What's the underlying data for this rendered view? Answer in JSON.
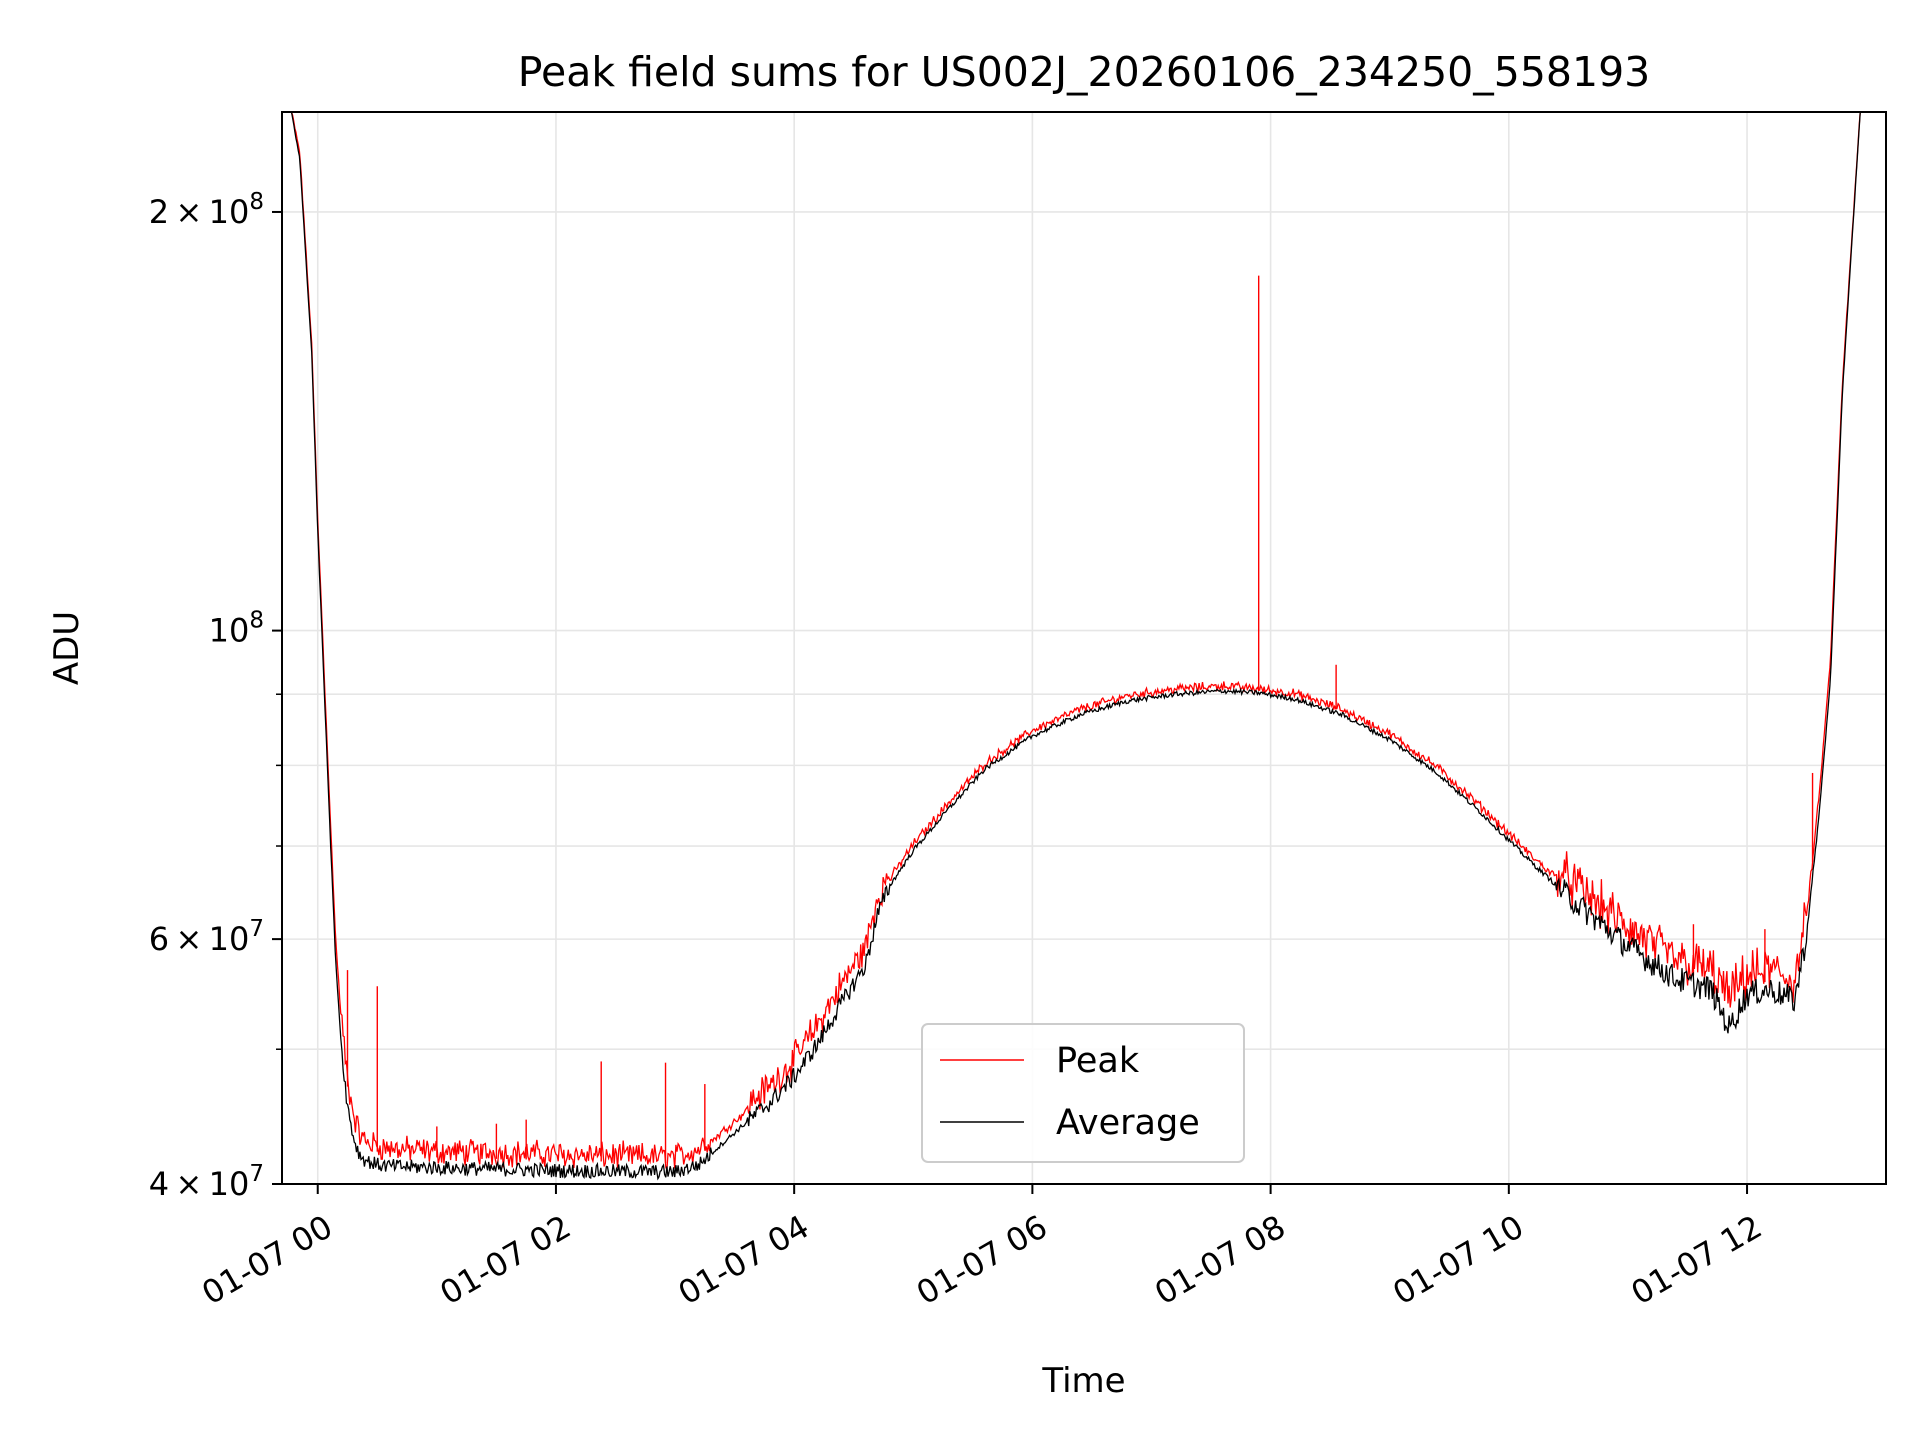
{
  "chart_data": {
    "type": "line",
    "title": "Peak field sums for US002J_20260106_234250_558193",
    "xlabel": "Time",
    "ylabel": "ADU",
    "y_scale": "log",
    "ylim": [
      40000000,
      236000000
    ],
    "xlim": [
      "01-06 23:42",
      "01-07 13:10"
    ],
    "grid": true,
    "legend_placement": "lower-center",
    "x_ticks": [
      "01-07 00",
      "01-07 02",
      "01-07 04",
      "01-07 06",
      "01-07 08",
      "01-07 10",
      "01-07 12"
    ],
    "x_tick_hours": [
      0,
      2,
      4,
      6,
      8,
      10,
      12
    ],
    "y_major_ticks": [
      {
        "value": 40000000,
        "mantissa": "4",
        "exponent": "7"
      },
      {
        "value": 60000000,
        "mantissa": "6",
        "exponent": "7"
      },
      {
        "value": 100000000,
        "mantissa": "",
        "exponent": "8"
      },
      {
        "value": 200000000,
        "mantissa": "2",
        "exponent": "8"
      }
    ],
    "y_minor_ticks": [
      50000000,
      70000000,
      80000000,
      90000000
    ],
    "series": [
      {
        "name": "Peak",
        "color": "#ff0000",
        "x_hours": [
          -0.22,
          -0.15,
          -0.05,
          0.0,
          0.05,
          0.1,
          0.15,
          0.2,
          0.25,
          0.3,
          0.35,
          0.4,
          0.5,
          0.6,
          0.8,
          1.0,
          1.2,
          1.5,
          1.8,
          2.0,
          2.2,
          2.5,
          2.8,
          3.0,
          3.2,
          3.4,
          3.6,
          3.8,
          4.0,
          4.2,
          4.4,
          4.6,
          4.7,
          4.8,
          5.0,
          5.3,
          5.6,
          6.0,
          6.4,
          6.8,
          7.2,
          7.6,
          7.9,
          8.2,
          8.6,
          9.0,
          9.4,
          9.8,
          10.2,
          10.6,
          11.0,
          11.4,
          11.7,
          11.85,
          12.0,
          12.2,
          12.4,
          12.45,
          12.5,
          12.6,
          12.7,
          12.8,
          12.95
        ],
        "y": [
          236000000,
          220000000,
          160000000,
          120000000,
          95000000,
          75000000,
          60000000,
          52000000,
          47000000,
          44500000,
          43000000,
          42500000,
          42200000,
          42000000,
          41900000,
          41800000,
          41750000,
          41700000,
          41650000,
          41600000,
          41550000,
          41500000,
          41450000,
          41400000,
          42000000,
          43500000,
          45000000,
          46500000,
          48500000,
          51500000,
          55000000,
          58500000,
          63500000,
          66000000,
          70000000,
          75000000,
          80000000,
          84500000,
          87500000,
          89500000,
          90500000,
          91000000,
          90500000,
          89800000,
          87500000,
          84000000,
          79500000,
          74000000,
          68500000,
          64000000,
          60000000,
          57000000,
          56000000,
          53500000,
          55500000,
          56000000,
          55000000,
          58000000,
          62000000,
          75000000,
          95000000,
          150000000,
          236000000
        ],
        "spikes": [
          {
            "x_hour": 0.25,
            "y": 57000000
          },
          {
            "x_hour": 0.5,
            "y": 55500000
          },
          {
            "x_hour": 1.0,
            "y": 44000000
          },
          {
            "x_hour": 1.5,
            "y": 44200000
          },
          {
            "x_hour": 1.75,
            "y": 44500000
          },
          {
            "x_hour": 2.38,
            "y": 49000000
          },
          {
            "x_hour": 2.92,
            "y": 48900000
          },
          {
            "x_hour": 3.25,
            "y": 47200000
          },
          {
            "x_hour": 7.9,
            "y": 180000000
          },
          {
            "x_hour": 8.55,
            "y": 94500000
          },
          {
            "x_hour": 11.55,
            "y": 61500000
          },
          {
            "x_hour": 12.15,
            "y": 61000000
          },
          {
            "x_hour": 12.55,
            "y": 79000000
          }
        ]
      },
      {
        "name": "Average",
        "color": "#000000",
        "x_hours": [
          -0.22,
          -0.15,
          -0.05,
          0.0,
          0.05,
          0.1,
          0.15,
          0.2,
          0.25,
          0.3,
          0.35,
          0.4,
          0.5,
          0.6,
          0.8,
          1.0,
          1.2,
          1.5,
          1.8,
          2.0,
          2.2,
          2.5,
          2.8,
          3.0,
          3.2,
          3.4,
          3.6,
          3.8,
          4.0,
          4.2,
          4.4,
          4.6,
          4.7,
          4.8,
          5.0,
          5.3,
          5.6,
          6.0,
          6.4,
          6.8,
          7.2,
          7.6,
          7.9,
          8.2,
          8.6,
          9.0,
          9.4,
          9.8,
          10.2,
          10.6,
          11.0,
          11.4,
          11.7,
          11.85,
          12.0,
          12.2,
          12.4,
          12.45,
          12.5,
          12.6,
          12.7,
          12.8,
          12.95
        ],
        "y": [
          236000000,
          218000000,
          158000000,
          118000000,
          93000000,
          73000000,
          58000000,
          50000000,
          45500000,
          43200000,
          42000000,
          41600000,
          41300000,
          41200000,
          41150000,
          41100000,
          41050000,
          41000000,
          40950000,
          40900000,
          40880000,
          40850000,
          40820000,
          40800000,
          41300000,
          42800000,
          44300000,
          45800000,
          47800000,
          50500000,
          54000000,
          57500000,
          62500000,
          65500000,
          69500000,
          74500000,
          79500000,
          84000000,
          87000000,
          89000000,
          90000000,
          90500000,
          90200000,
          89300000,
          87000000,
          83500000,
          79000000,
          73500000,
          68000000,
          63300000,
          59300000,
          56200000,
          55200000,
          51800000,
          54800000,
          55200000,
          54200000,
          57200000,
          60500000,
          73000000,
          92000000,
          148000000,
          236000000
        ]
      }
    ]
  }
}
